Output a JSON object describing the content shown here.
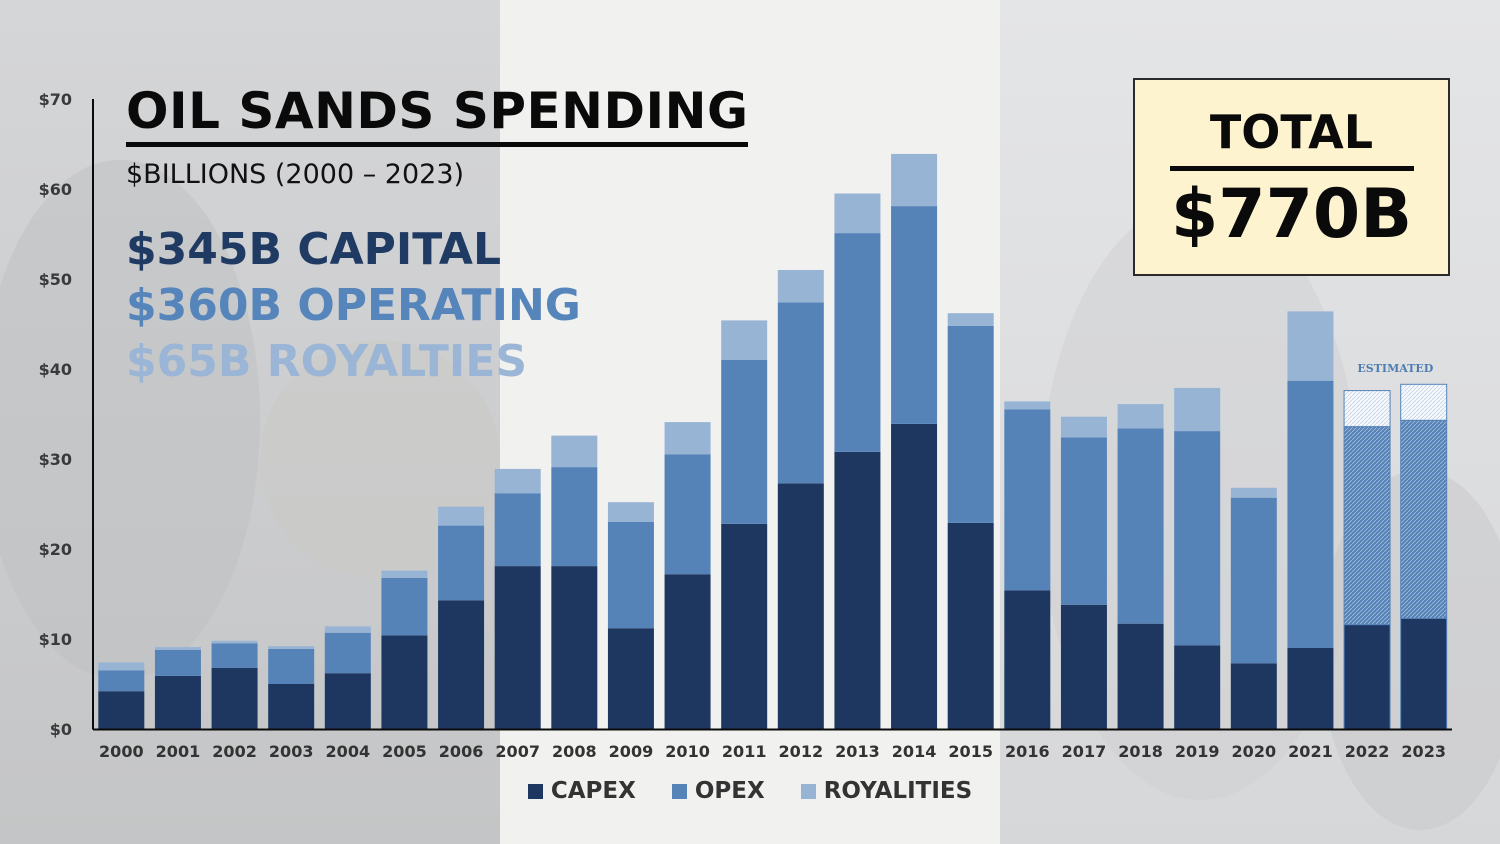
{
  "header": {
    "title": "OIL SANDS SPENDING",
    "subtitle": "$BILLIONS (2000 – 2023)"
  },
  "summary": [
    {
      "amount": "$345B",
      "label": "CAPITAL",
      "color": "#1f3a63"
    },
    {
      "amount": "$360B",
      "label": "OPERATING",
      "color": "#5585ba"
    },
    {
      "amount": "$65B",
      "label": "ROYALTIES",
      "color": "#9ab5d6"
    }
  ],
  "total": {
    "label": "TOTAL",
    "value": "$770B"
  },
  "colors": {
    "capex": "#1e3760",
    "opex": "#5583b8",
    "royalties": "#98b4d5",
    "estimate_border": "#5583b8"
  },
  "chart_data": {
    "type": "bar",
    "stacked": true,
    "categories": [
      "2000",
      "2001",
      "2002",
      "2003",
      "2004",
      "2005",
      "2006",
      "2007",
      "2008",
      "2009",
      "2010",
      "2011",
      "2012",
      "2013",
      "2014",
      "2015",
      "2016",
      "2017",
      "2018",
      "2019",
      "2020",
      "2021",
      "2022",
      "2023"
    ],
    "series": [
      {
        "name": "CAPEX",
        "values": [
          4.2,
          5.9,
          6.8,
          5.0,
          6.2,
          10.4,
          14.3,
          18.1,
          18.1,
          11.2,
          17.2,
          22.8,
          27.3,
          30.8,
          33.9,
          22.9,
          15.4,
          13.8,
          11.7,
          9.3,
          7.3,
          9.0,
          11.6,
          12.3
        ]
      },
      {
        "name": "OPEX",
        "values": [
          2.3,
          2.9,
          2.7,
          3.9,
          4.5,
          6.4,
          8.3,
          8.1,
          11.0,
          11.8,
          13.3,
          18.2,
          20.1,
          24.3,
          24.2,
          21.9,
          20.1,
          18.6,
          21.7,
          23.8,
          18.4,
          29.7,
          22.0,
          22.0
        ]
      },
      {
        "name": "ROYALITIES",
        "values": [
          0.9,
          0.3,
          0.3,
          0.3,
          0.7,
          0.8,
          2.1,
          2.7,
          3.5,
          2.2,
          3.6,
          4.4,
          3.6,
          4.4,
          5.8,
          1.4,
          0.9,
          2.3,
          2.7,
          4.8,
          1.1,
          7.7,
          4.0,
          4.0
        ]
      }
    ],
    "estimated_categories": [
      "2022",
      "2023"
    ],
    "estimated_label": "ESTIMATED",
    "ylim": [
      0,
      70
    ],
    "yticks": [
      0,
      10,
      20,
      30,
      40,
      50,
      60,
      70
    ],
    "ytick_labels": [
      "$0",
      "$10",
      "$20",
      "$30",
      "$40",
      "$50",
      "$60",
      "$70"
    ],
    "xlabel": "",
    "ylabel": "",
    "legend": [
      "CAPEX",
      "OPEX",
      "ROYALITIES"
    ],
    "legend_position": "bottom-center",
    "grid": false
  }
}
